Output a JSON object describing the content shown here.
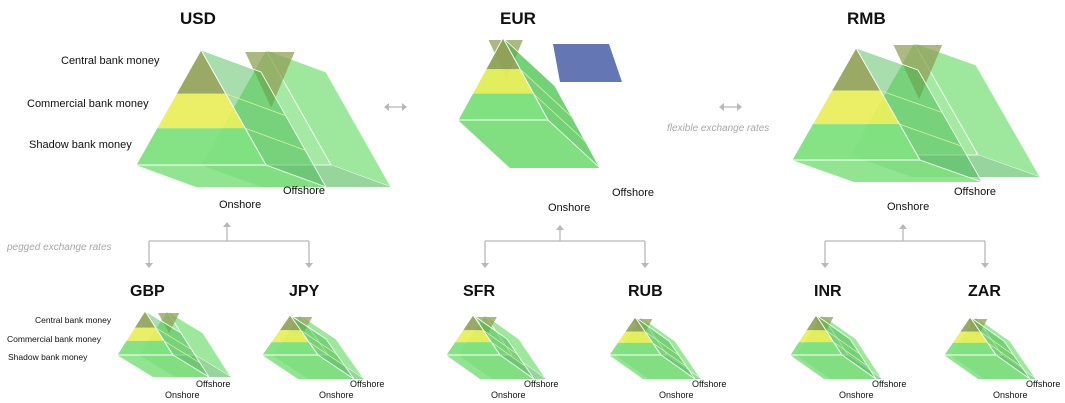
{
  "currencies": {
    "usd": "USD",
    "eur": "EUR",
    "rmb": "RMB",
    "gbp": "GBP",
    "jpy": "JPY",
    "sfr": "SFR",
    "rub": "RUB",
    "inr": "INR",
    "zar": "ZAR"
  },
  "tiers": {
    "central": "Central bank money",
    "commercial": "Commercial bank money",
    "shadow": "Shadow bank money"
  },
  "shore": {
    "onshore": "Onshore",
    "offshore": "Offshore"
  },
  "notes": {
    "pegged": "pegged exchange rates",
    "flexible": "flexible exchange rates"
  },
  "colors": {
    "green_face": "#7ee07e",
    "green_dark": "#3fb54a",
    "yellow": "#e8ee58",
    "olive": "#8fa055",
    "blue": "#4a5ea8",
    "arrow": "#b8b8b8",
    "text": "#111111",
    "note": "#a8a8a8"
  }
}
